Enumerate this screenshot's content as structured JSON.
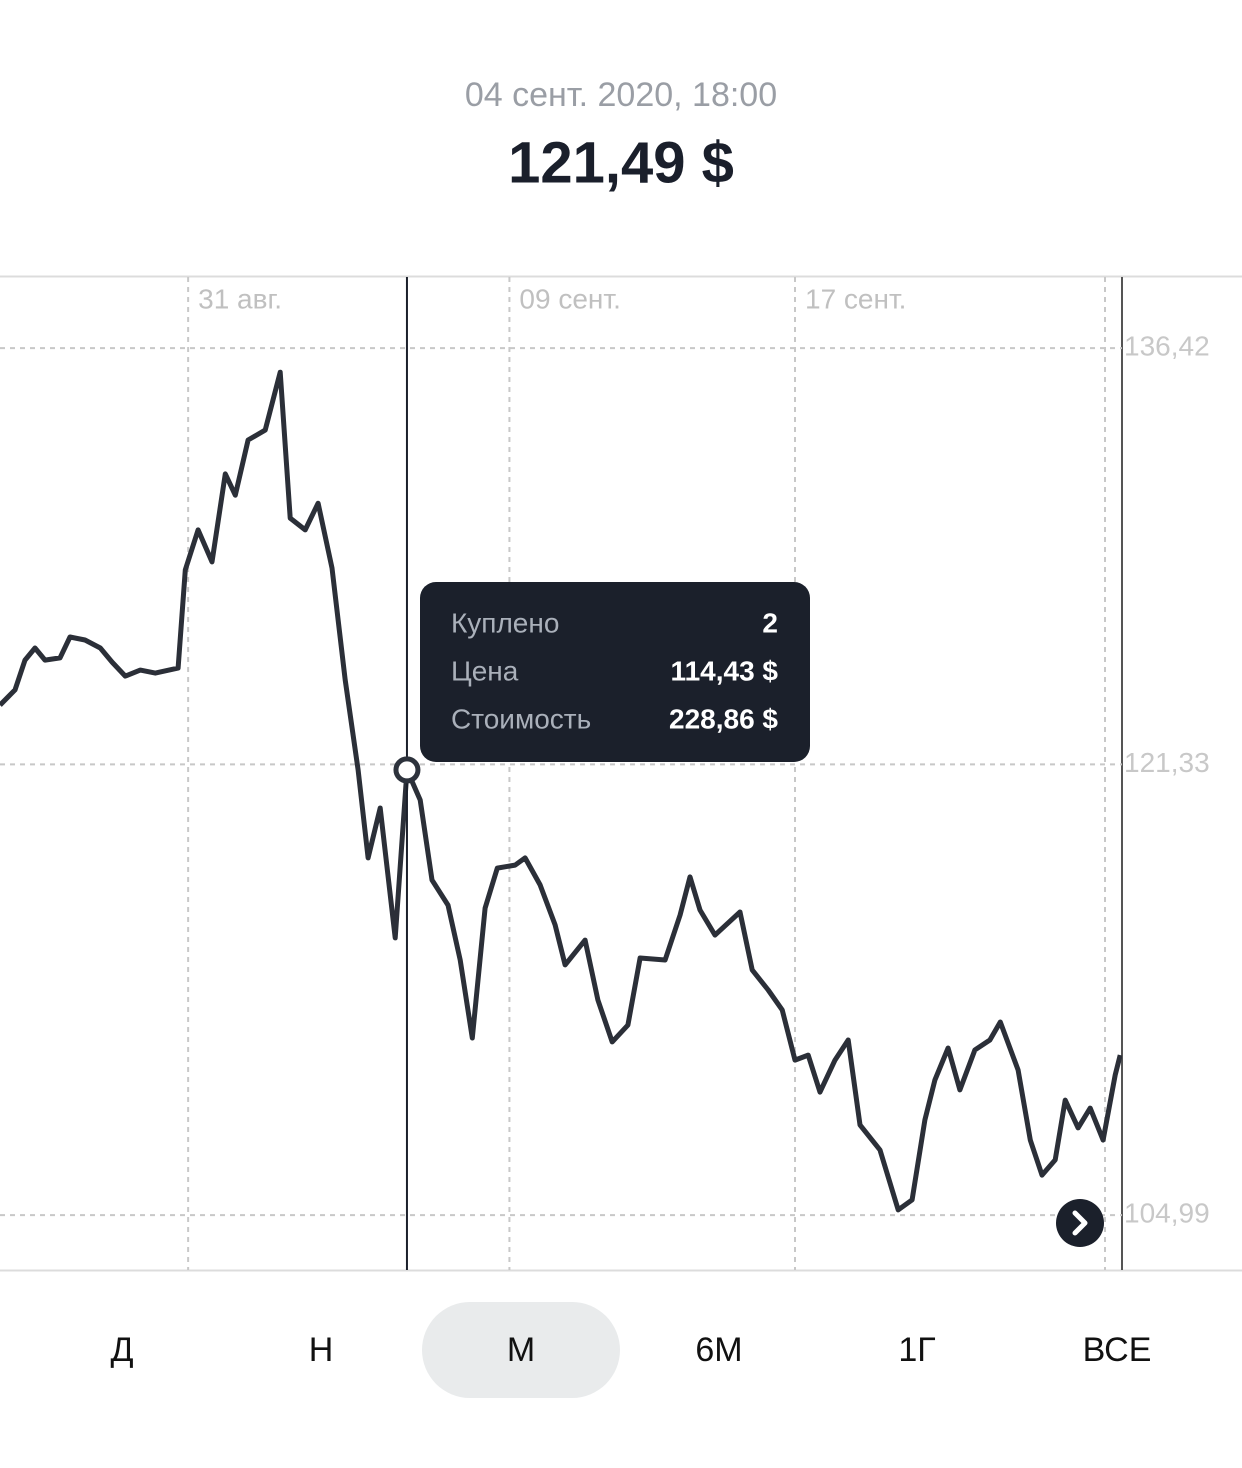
{
  "header": {
    "date": "04 сент. 2020, 18:00",
    "price": "121,49 $"
  },
  "chart_data": {
    "type": "line",
    "x": [
      -5.27,
      -4.85,
      -4.57,
      -4.29,
      -4.01,
      -3.59,
      -3.31,
      -2.89,
      -2.46,
      -2.13,
      -1.76,
      -1.34,
      -0.92,
      -0.28,
      -0.08,
      0.28,
      0.67,
      1.04,
      1.32,
      1.68,
      2.16,
      2.58,
      2.86,
      3.28,
      3.64,
      4.03,
      4.4,
      4.76,
      5.04,
      5.38,
      5.8,
      6.13,
      6.5,
      6.83,
      7.28,
      7.62,
      7.96,
      8.32,
      8.66,
      9.16,
      9.44,
      9.86,
      10.28,
      10.56,
      11.12,
      11.48,
      11.88,
      12.32,
      12.66,
      13.36,
      13.78,
      14.06,
      14.34,
      14.76,
      15.46,
      15.8,
      16.25,
      16.64,
      17.0,
      17.37,
      17.7,
      18.12,
      18.49,
      18.82,
      19.38,
      19.89,
      20.28,
      20.64,
      20.92,
      21.29,
      21.62,
      22.04,
      22.46,
      22.75,
      23.25,
      23.59,
      23.92,
      24.29,
      24.57,
      24.93,
      25.27,
      25.63,
      25.97,
      26.11
    ],
    "series": [
      {
        "color": "#2b2f38",
        "values": [
          123.48,
          124.03,
          125.11,
          125.55,
          125.11,
          125.19,
          125.95,
          125.84,
          125.55,
          125.04,
          124.53,
          124.75,
          124.64,
          124.82,
          128.38,
          129.83,
          128.67,
          131.86,
          131.09,
          133.09,
          133.45,
          135.55,
          130.26,
          129.83,
          130.8,
          128.45,
          124.39,
          121.13,
          117.94,
          119.75,
          115.04,
          121.13,
          120.04,
          117.14,
          116.23,
          114.24,
          111.41,
          116.12,
          117.57,
          117.68,
          117.94,
          116.96,
          115.51,
          114.06,
          114.96,
          112.79,
          111.27,
          111.88,
          114.31,
          114.24,
          115.87,
          117.25,
          116.05,
          115.14,
          115.98,
          113.88,
          113.15,
          112.43,
          110.61,
          110.79,
          109.45,
          110.61,
          111.34,
          108.26,
          107.35,
          105.18,
          105.54,
          108.44,
          109.89,
          111.05,
          109.53,
          110.98,
          111.34,
          111.99,
          110.25,
          107.71,
          106.44,
          106.99,
          109.16,
          108.15,
          108.87,
          107.71,
          110.07,
          110.79
        ]
      }
    ],
    "xlim": [
      -5.27,
      26.16
    ],
    "xticks": [
      {
        "value": 0,
        "label": "31 авг."
      },
      {
        "value": 9,
        "label": "09 сент."
      },
      {
        "value": 17,
        "label": "17 сент."
      }
    ],
    "ylim": [
      103,
      139
    ],
    "yticks": [
      {
        "value": 136.42,
        "label": "136,42"
      },
      {
        "value": 121.33,
        "label": "121,33"
      },
      {
        "value": 104.99,
        "label": "104,99"
      }
    ],
    "cursor": {
      "x": 6.13,
      "y": 121.13
    },
    "grid": true
  },
  "tooltip": {
    "rows": [
      {
        "label": "Куплено",
        "value": "2"
      },
      {
        "label": "Цена",
        "value": "114,43 $"
      },
      {
        "label": "Стоимость",
        "value": "228,86 $"
      }
    ]
  },
  "periods": {
    "items": [
      "Д",
      "Н",
      "М",
      "6М",
      "1Г",
      "ВСЕ"
    ],
    "selected": 2
  }
}
